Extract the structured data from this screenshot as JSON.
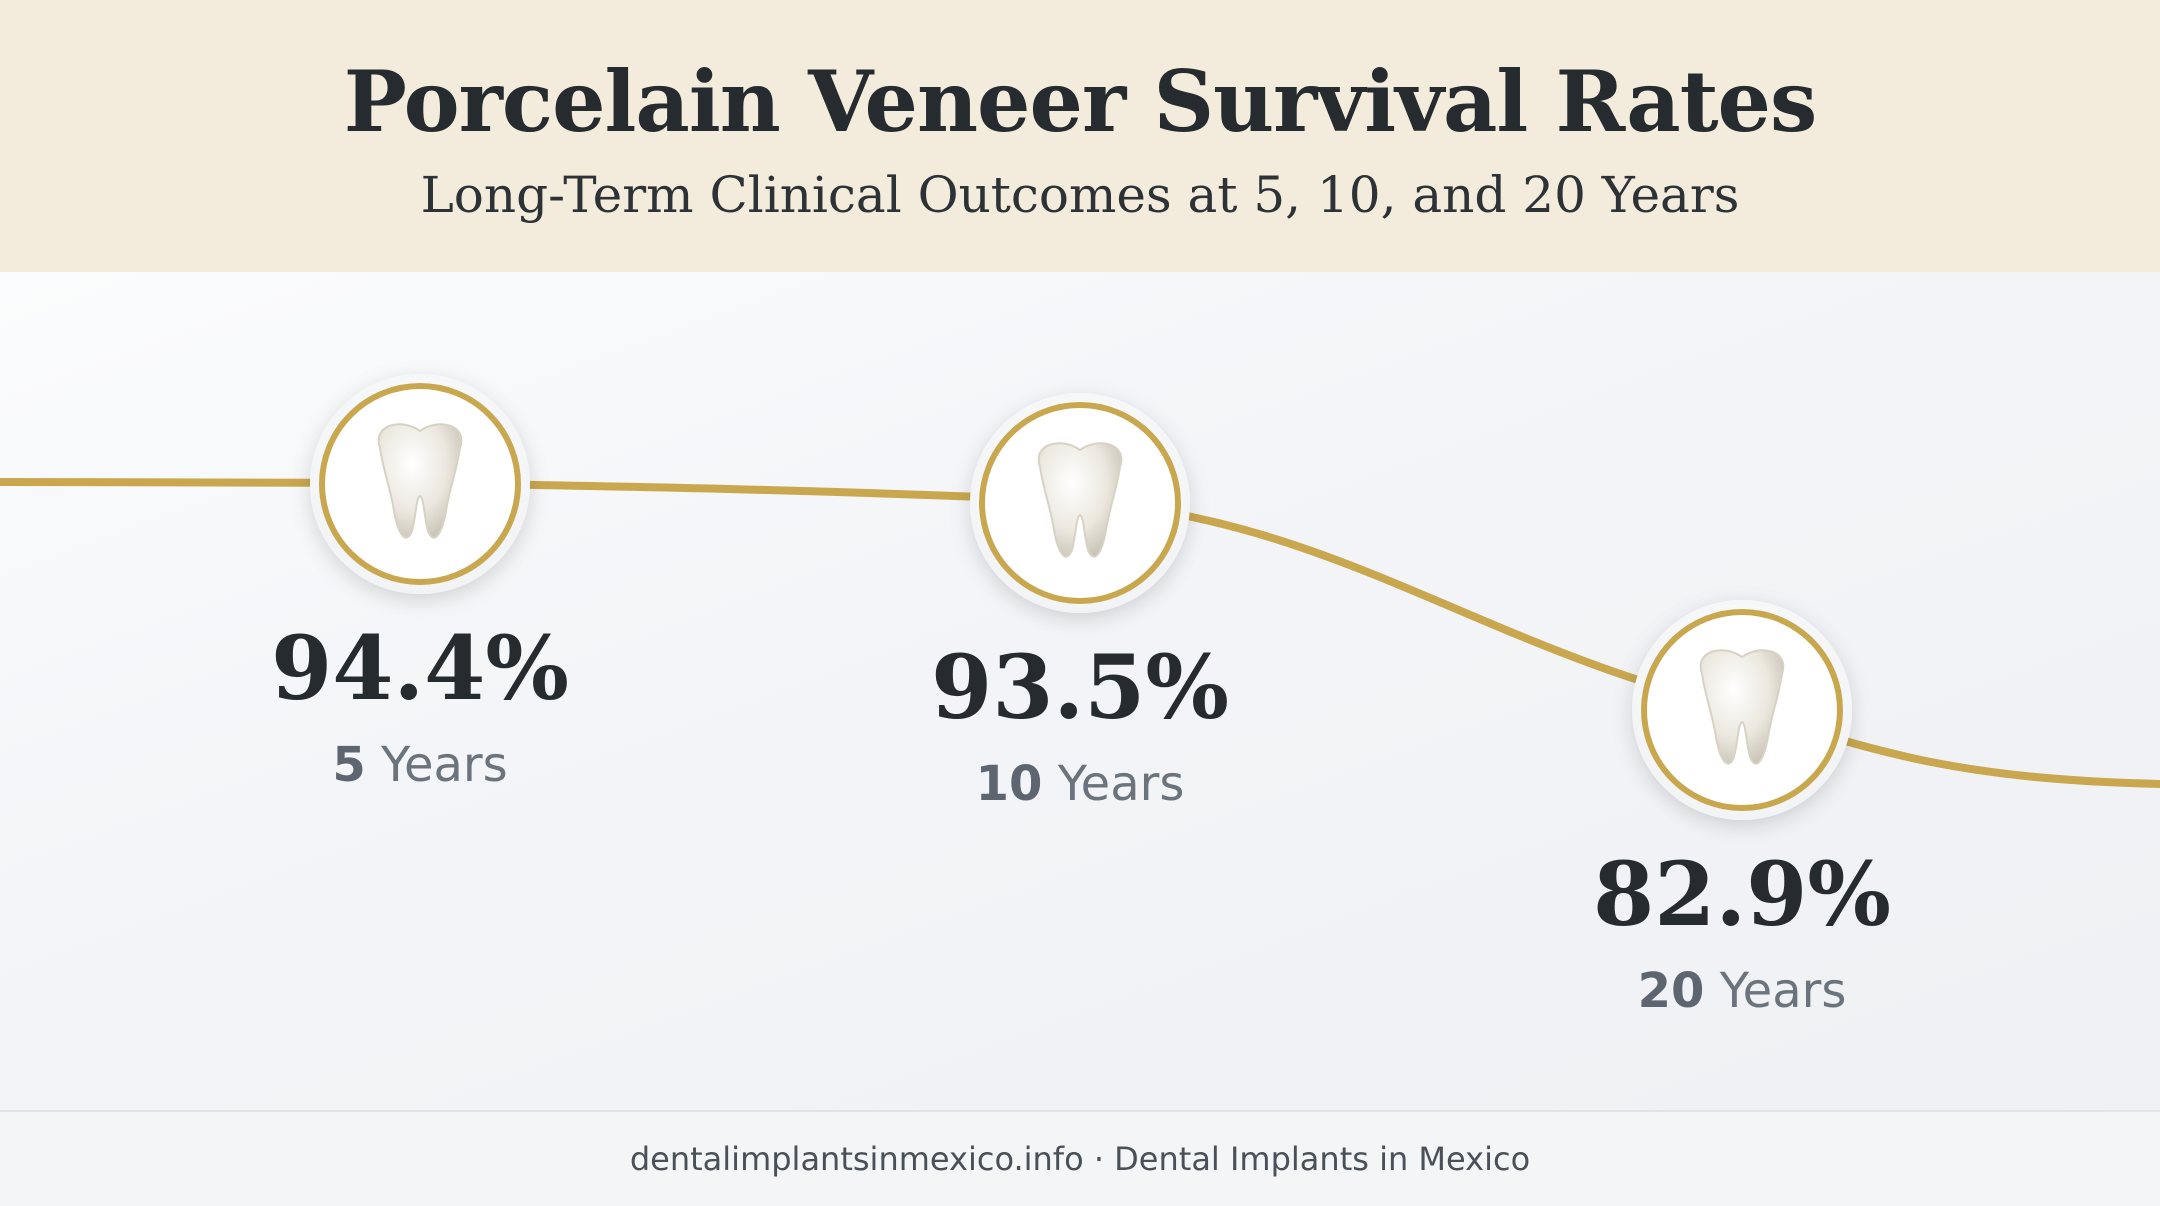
{
  "header": {
    "title": "Porcelain Veneer Survival Rates",
    "subtitle": "Long-Term Clinical Outcomes at 5, 10, and 20 Years"
  },
  "chart_data": {
    "type": "line",
    "title": "Porcelain Veneer Survival Rates",
    "subtitle": "Long-Term Clinical Outcomes at 5, 10, and 20 Years",
    "x": [
      5,
      10,
      20
    ],
    "x_unit": "Years",
    "values": [
      94.4,
      93.5,
      82.9
    ],
    "value_labels": [
      "94.4%",
      "93.5%",
      "82.9%"
    ],
    "period_numbers": [
      "5",
      "10",
      "20"
    ],
    "grid": false,
    "marker_icon": "tooth-icon",
    "colors": {
      "line": "#c9a74f",
      "marker_ring": "#c9a74f",
      "text": "#262b2f",
      "muted": "#6b737d"
    }
  },
  "footer": {
    "text": "dentalimplantsinmexico.info · Dental Implants in Mexico"
  }
}
